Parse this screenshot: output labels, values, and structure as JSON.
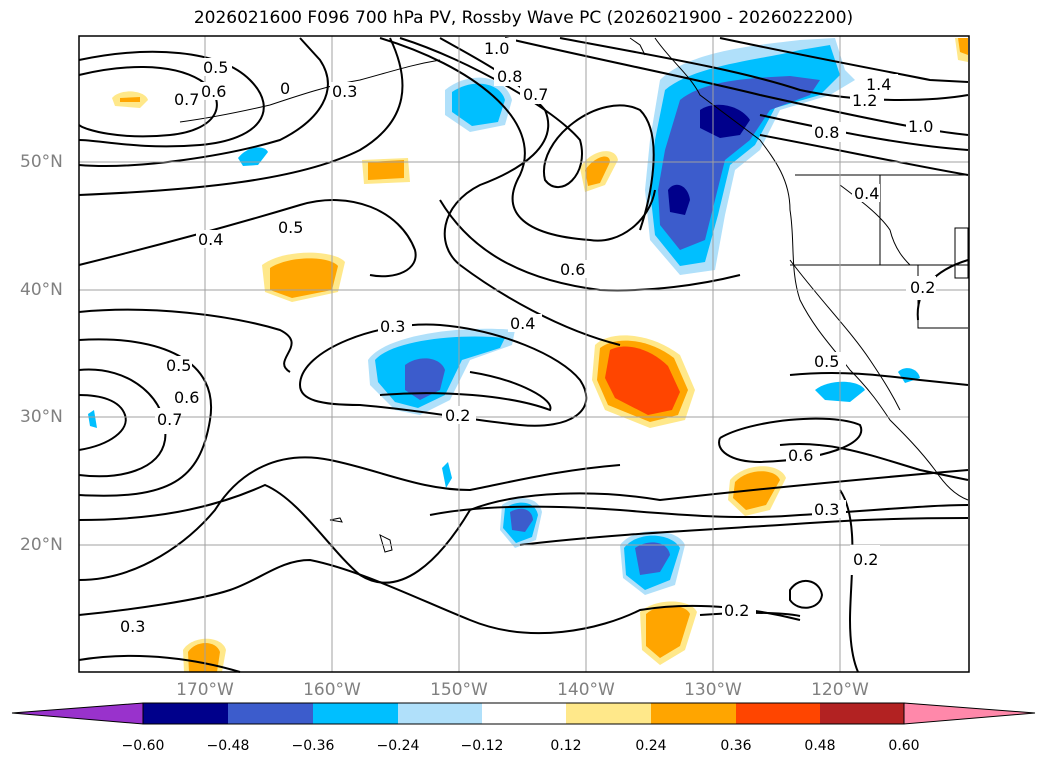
{
  "title": "2026021600 F096 700 hPa PV, Rossby Wave PC (2026021900 - 2026022200)",
  "latitude_labels": [
    "50°N",
    "40°N",
    "30°N",
    "20°N"
  ],
  "longitude_labels": [
    "170°W",
    "160°W",
    "150°W",
    "140°W",
    "130°W",
    "120°W"
  ],
  "colorbar": {
    "ticks": [
      "−0.60",
      "−0.48",
      "−0.36",
      "−0.24",
      "−0.12",
      "0.12",
      "0.24",
      "0.36",
      "0.48",
      "0.60"
    ],
    "colors": [
      "#9932cc",
      "#00008b",
      "#3c5ccc",
      "#00bfff",
      "#b0e0fa",
      "#ffffff",
      "#ffe88a",
      "#ffa500",
      "#ff4500",
      "#b22222",
      "#ff88aa"
    ]
  },
  "contour_labels": [
    "1.0",
    "0.8",
    "0.7",
    "0.5",
    "0.6",
    "0.7",
    "0",
    "0.3",
    "1.4",
    "1.2",
    "1.0",
    "0.8",
    "0.4",
    "0.5",
    "0.6",
    "0.4",
    "0.3",
    "0.4",
    "0.2",
    "0.5",
    "0.6",
    "0.7",
    "0.5",
    "0.6",
    "0.3",
    "0.2",
    "0.3",
    "0.2",
    "0.2"
  ],
  "colors": {
    "contour": "#000000",
    "coast": "#000000",
    "grid": "#a0a0a0",
    "axis_label": "#808080"
  }
}
